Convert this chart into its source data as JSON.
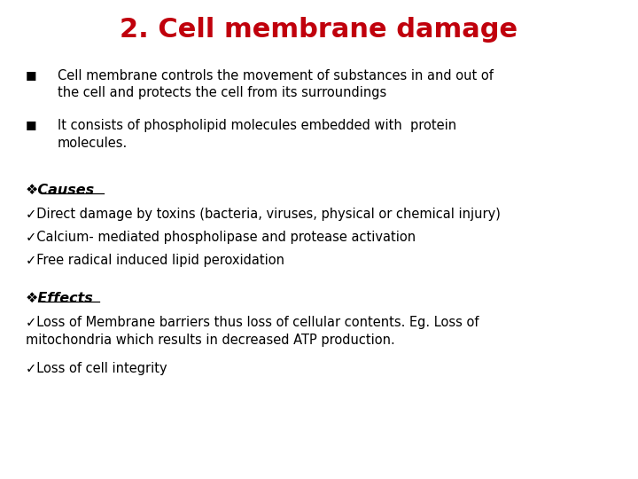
{
  "title": "2. Cell membrane damage",
  "title_color": "#C0000C",
  "title_fontsize": 22,
  "background_color": "#FFFFFF",
  "bullet_items": [
    "Cell membrane controls the movement of substances in and out of\nthe cell and protects the cell from its surroundings",
    "It consists of phospholipid molecules embedded with  protein\nmolecules."
  ],
  "causes_heading": "❖Causes",
  "causes_items": [
    "✓Direct damage by toxins (bacteria, viruses, physical or chemical injury)",
    "✓Calcium- mediated phospholipase and protease activation",
    "✓Free radical induced lipid peroxidation"
  ],
  "effects_heading": "❖Effects",
  "effects_items": [
    "✓Loss of Membrane barriers thus loss of cellular contents. Eg. Loss of\nmitochondria which results in decreased ATP production.",
    "✓Loss of cell integrity"
  ],
  "text_color": "#000000",
  "heading_color": "#000000",
  "font_family": "DejaVu Sans",
  "body_fontsize": 10.5,
  "heading_fontsize": 11.5
}
